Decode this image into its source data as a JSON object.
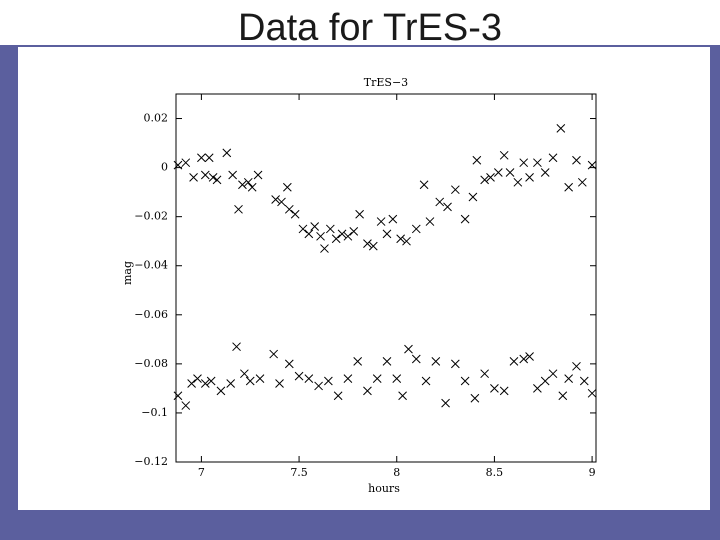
{
  "slide_title": "Data for TrES-3",
  "chart_data": {
    "type": "scatter",
    "title": "TrES−3",
    "x_label": "hours",
    "y_label": "mag",
    "xlim": [
      6.87,
      9.02
    ],
    "xticks": [
      7,
      7.5,
      8,
      8.5,
      9
    ],
    "ylim": [
      -0.12,
      0.03
    ],
    "yticks": [
      {
        "value": 0.02,
        "label": "0.02"
      },
      0,
      {
        "value": -0.02,
        "label": "−0.02"
      },
      {
        "value": -0.04,
        "label": "−0.04"
      },
      {
        "value": -0.06,
        "label": "−0.06"
      },
      {
        "value": -0.08,
        "label": "−0.08"
      },
      {
        "value": -0.1,
        "label": "−0.1"
      },
      {
        "value": -0.12,
        "label": "−0.12"
      }
    ],
    "series": [
      {
        "color": "#000000",
        "x": [
          6.88,
          6.92,
          6.96,
          7.0,
          7.02,
          7.04,
          7.06,
          7.08,
          7.13,
          7.16,
          7.19,
          7.21,
          7.24,
          7.26,
          7.29,
          7.38,
          7.41,
          7.44,
          7.45,
          7.48,
          7.52,
          7.55,
          7.58,
          7.61,
          7.63,
          7.66,
          7.69,
          7.72,
          7.75,
          7.78,
          7.81,
          7.85,
          7.88,
          7.92,
          7.95,
          7.98,
          8.02,
          8.05,
          8.1,
          8.14,
          8.17,
          8.22,
          8.26,
          8.3,
          8.35,
          8.39,
          8.41,
          8.45,
          8.48,
          8.52,
          8.55,
          8.58,
          8.62,
          8.65,
          8.68,
          8.72,
          8.76,
          8.8,
          8.84,
          8.88,
          8.92,
          8.95,
          9.0
        ],
        "values": [
          0.001,
          0.002,
          -0.004,
          0.004,
          -0.003,
          0.004,
          -0.004,
          -0.005,
          0.006,
          -0.003,
          -0.017,
          -0.007,
          -0.006,
          -0.008,
          -0.003,
          -0.013,
          -0.014,
          -0.008,
          -0.017,
          -0.019,
          -0.025,
          -0.027,
          -0.024,
          -0.028,
          -0.033,
          -0.025,
          -0.029,
          -0.027,
          -0.028,
          -0.026,
          -0.019,
          -0.031,
          -0.032,
          -0.022,
          -0.027,
          -0.021,
          -0.029,
          -0.03,
          -0.025,
          -0.007,
          -0.022,
          -0.014,
          -0.016,
          -0.009,
          -0.021,
          -0.012,
          0.003,
          -0.005,
          -0.004,
          -0.002,
          0.005,
          -0.002,
          -0.006,
          0.002,
          -0.004,
          0.002,
          -0.002,
          0.004,
          0.016,
          -0.008,
          0.003,
          -0.006,
          0.001
        ]
      },
      {
        "color": "#000000",
        "x": [
          6.88,
          6.92,
          6.95,
          6.98,
          7.02,
          7.05,
          7.1,
          7.15,
          7.18,
          7.22,
          7.25,
          7.3,
          7.37,
          7.4,
          7.45,
          7.5,
          7.55,
          7.6,
          7.65,
          7.7,
          7.75,
          7.8,
          7.85,
          7.9,
          7.95,
          8.0,
          8.03,
          8.06,
          8.1,
          8.15,
          8.2,
          8.25,
          8.3,
          8.35,
          8.4,
          8.45,
          8.5,
          8.55,
          8.6,
          8.65,
          8.68,
          8.72,
          8.76,
          8.8,
          8.85,
          8.88,
          8.92,
          8.96,
          9.0
        ],
        "values": [
          -0.093,
          -0.097,
          -0.088,
          -0.086,
          -0.088,
          -0.087,
          -0.091,
          -0.088,
          -0.073,
          -0.084,
          -0.087,
          -0.086,
          -0.076,
          -0.088,
          -0.08,
          -0.085,
          -0.086,
          -0.089,
          -0.087,
          -0.093,
          -0.086,
          -0.079,
          -0.091,
          -0.086,
          -0.079,
          -0.086,
          -0.093,
          -0.074,
          -0.078,
          -0.087,
          -0.079,
          -0.096,
          -0.08,
          -0.087,
          -0.094,
          -0.084,
          -0.09,
          -0.091,
          -0.079,
          -0.078,
          -0.077,
          -0.09,
          -0.087,
          -0.084,
          -0.093,
          -0.086,
          -0.081,
          -0.087,
          -0.092
        ]
      }
    ]
  }
}
